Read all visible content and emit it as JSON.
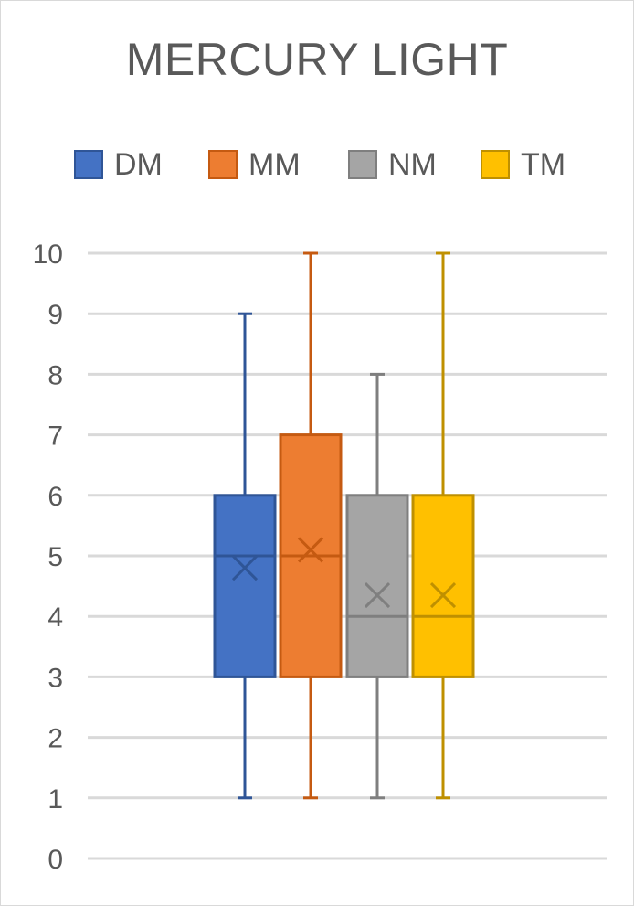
{
  "chart_data": {
    "type": "boxplot",
    "title": "MERCURY LIGHT",
    "xlabel": "",
    "ylabel": "",
    "ylim": [
      0,
      10
    ],
    "yticks": [
      "0",
      "1",
      "2",
      "3",
      "4",
      "5",
      "6",
      "7",
      "8",
      "9",
      "10"
    ],
    "grid": true,
    "legend_position": "top",
    "series": [
      {
        "name": "DM",
        "min": 1,
        "q1": 3,
        "median": 5,
        "q3": 6,
        "max": 9,
        "mean": 4.8,
        "color": "#4472c4",
        "edge": "#2f5597"
      },
      {
        "name": "MM",
        "min": 1,
        "q1": 3,
        "median": 5,
        "q3": 7,
        "max": 10,
        "mean": 5.1,
        "color": "#ed7d31",
        "edge": "#c55a11"
      },
      {
        "name": "NM",
        "min": 1,
        "q1": 3,
        "median": 4,
        "q3": 6,
        "max": 8,
        "mean": 4.35,
        "color": "#a5a5a5",
        "edge": "#7f7f7f"
      },
      {
        "name": "TM",
        "min": 1,
        "q1": 3,
        "median": 4,
        "q3": 6,
        "max": 10,
        "mean": 4.35,
        "color": "#ffc000",
        "edge": "#bf9000"
      }
    ]
  }
}
